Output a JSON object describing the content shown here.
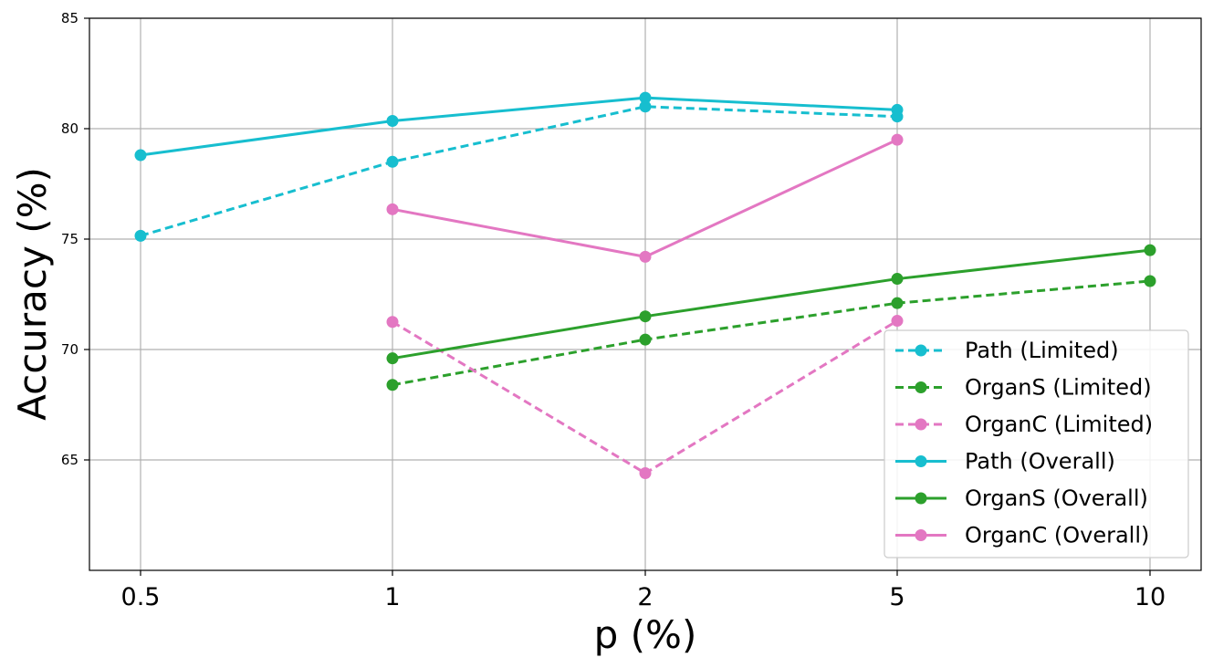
{
  "chart_data": {
    "type": "line",
    "xlabel": "p (%)",
    "ylabel": "Accuracy (%)",
    "x_categories": [
      "0.5",
      "1",
      "2",
      "5",
      "10"
    ],
    "ylim": [
      60,
      85
    ],
    "y_ticks": [
      "65",
      "70",
      "75",
      "80",
      "85"
    ],
    "grid": true,
    "legend_position": "lower-right",
    "series": [
      {
        "name": "Path (Limited)",
        "style": "dashed",
        "color": "#17becf",
        "points": [
          [
            "0.5",
            75.15
          ],
          [
            "1",
            78.5
          ],
          [
            "2",
            81.0
          ],
          [
            "5",
            80.55
          ]
        ]
      },
      {
        "name": "OrganS (Limited)",
        "style": "dashed",
        "color": "#2ca02c",
        "points": [
          [
            "1",
            68.4
          ],
          [
            "2",
            70.45
          ],
          [
            "5",
            72.1
          ],
          [
            "10",
            73.1
          ]
        ]
      },
      {
        "name": "OrganC (Limited)",
        "style": "dashed",
        "color": "#e377c2",
        "points": [
          [
            "1",
            71.25
          ],
          [
            "2",
            64.4
          ],
          [
            "5",
            71.3
          ]
        ]
      },
      {
        "name": "Path (Overall)",
        "style": "solid",
        "color": "#17becf",
        "points": [
          [
            "0.5",
            78.8
          ],
          [
            "1",
            80.35
          ],
          [
            "2",
            81.4
          ],
          [
            "5",
            80.85
          ]
        ]
      },
      {
        "name": "OrganS (Overall)",
        "style": "solid",
        "color": "#2ca02c",
        "points": [
          [
            "1",
            69.6
          ],
          [
            "2",
            71.5
          ],
          [
            "5",
            73.2
          ],
          [
            "10",
            74.5
          ]
        ]
      },
      {
        "name": "OrganC (Overall)",
        "style": "solid",
        "color": "#e377c2",
        "points": [
          [
            "1",
            76.35
          ],
          [
            "2",
            74.2
          ],
          [
            "5",
            79.5
          ]
        ]
      }
    ]
  }
}
